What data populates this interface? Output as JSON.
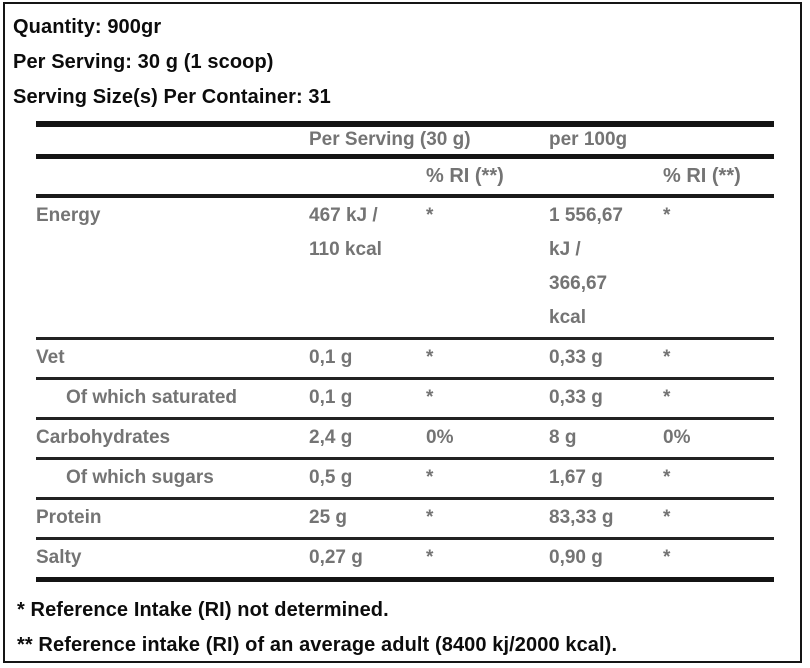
{
  "header": {
    "quantity": "Quantity: 900gr",
    "per_serving": "Per Serving: 30 g (1 scoop)",
    "servings_per_container": "Serving Size(s) Per Container: 31"
  },
  "table": {
    "col_headers": [
      "Per Serving (30 g)",
      "per 100g"
    ],
    "ri_headers": [
      "% RI (**)",
      "% RI (**)"
    ],
    "rows": [
      {
        "label": "Energy",
        "per_serving": "467 kJ /\n110 kcal",
        "ri_serving": "*",
        "per_100g": "1 556,67\nkJ /\n366,67\nkcal",
        "ri_100g": "*"
      },
      {
        "label": "Vet",
        "per_serving": "0,1 g",
        "ri_serving": "*",
        "per_100g": "0,33 g",
        "ri_100g": "*"
      },
      {
        "label": "Of which saturated",
        "per_serving": "0,1 g",
        "ri_serving": "*",
        "per_100g": "0,33 g",
        "ri_100g": "*"
      },
      {
        "label": "Carbohydrates",
        "per_serving": "2,4 g",
        "ri_serving": "0%",
        "per_100g": "8 g",
        "ri_100g": "0%"
      },
      {
        "label": "Of which sugars",
        "per_serving": "0,5 g",
        "ri_serving": "*",
        "per_100g": "1,67 g",
        "ri_100g": "*"
      },
      {
        "label": "Protein",
        "per_serving": "25 g",
        "ri_serving": "*",
        "per_100g": "83,33 g",
        "ri_100g": "*"
      },
      {
        "label": "Salty",
        "per_serving": "0,27 g",
        "ri_serving": "*",
        "per_100g": "0,90 g",
        "ri_100g": "*"
      }
    ]
  },
  "footnotes": [
    "* Reference Intake (RI) not determined.",
    "** Reference intake (RI) of an average adult (8400 kj/2000 kcal)."
  ],
  "colors": {
    "text_black": "#0c0c0c",
    "text_gray": "#747474",
    "rule_black": "#141414"
  }
}
